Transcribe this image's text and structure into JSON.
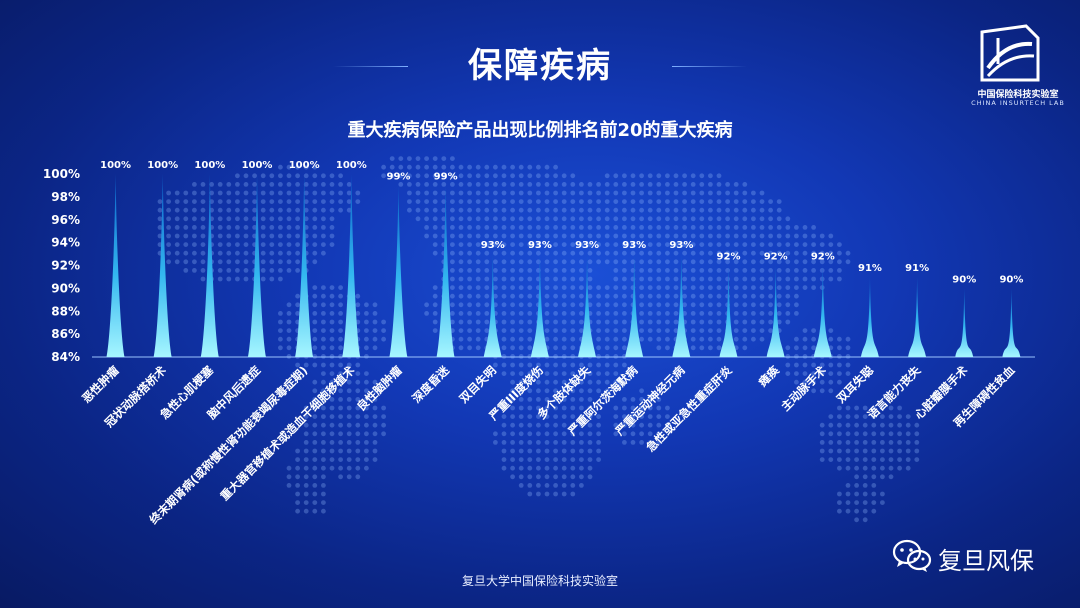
{
  "page": {
    "title": "保障疾病",
    "footer": "复旦大学中国保险科技实验室"
  },
  "logo": {
    "name_cn": "中国保险科技实验室",
    "name_en": "CHINA INSURTECH LAB",
    "icon": "lab-logo-icon"
  },
  "wechat": {
    "label": "复旦风保",
    "icon": "wechat-icon"
  },
  "colors": {
    "background": "#1238b5",
    "bar_top": "#0d6fd6",
    "bar_bottom": "#8ff0ff",
    "axis": "#9bc4ff"
  },
  "chart_data": {
    "type": "bar",
    "title": "重大疾病保险产品出现比例排名前20的重大疾病",
    "xlabel": "",
    "ylabel": "",
    "ylim": [
      84,
      100
    ],
    "yticks": [
      "84%",
      "86%",
      "88%",
      "90%",
      "92%",
      "94%",
      "96%",
      "98%",
      "100%"
    ],
    "grid": false,
    "categories": [
      "恶性肿瘤",
      "冠状动脉搭桥术",
      "急性心肌梗塞",
      "脑中风后遗症",
      "终末期肾病(或称慢性肾功能衰竭尿毒症期)",
      "重大器官移植术或造血干细胞移植术",
      "良性脑肿瘤",
      "深度昏迷",
      "双目失明",
      "严重III度烧伤",
      "多个肢体缺失",
      "严重阿尔茨海默病",
      "严重运动神经元病",
      "急性或亚急性重症肝炎",
      "瘫痪",
      "主动脉手术",
      "双耳失聪",
      "语言能力丧失",
      "心脏瓣膜手术",
      "再生障碍性贫血"
    ],
    "values": [
      100,
      100,
      100,
      100,
      100,
      100,
      99,
      99,
      93,
      93,
      93,
      93,
      93,
      92,
      92,
      92,
      91,
      91,
      90,
      90
    ],
    "data_labels": [
      "100%",
      "100%",
      "100%",
      "100%",
      "100%",
      "100%",
      "99%",
      "99%",
      "93%",
      "93%",
      "93%",
      "93%",
      "93%",
      "92%",
      "92%",
      "92%",
      "91%",
      "91%",
      "90%",
      "90%"
    ]
  }
}
